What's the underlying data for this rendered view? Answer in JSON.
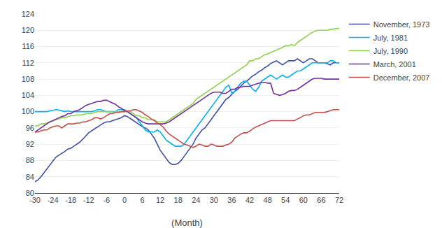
{
  "chart_data": {
    "type": "line",
    "xlabel": "(Month)",
    "xlim": [
      -30,
      72
    ],
    "ylim": [
      80,
      124
    ],
    "xticks": [
      -30,
      -24,
      -18,
      -12,
      -6,
      0,
      6,
      12,
      18,
      24,
      30,
      36,
      42,
      48,
      54,
      60,
      66,
      72
    ],
    "yticks": [
      80,
      84,
      88,
      92,
      96,
      100,
      104,
      108,
      112,
      116,
      120,
      124
    ],
    "grid": true,
    "legend": "right",
    "x": [
      -30,
      -29,
      -28,
      -27,
      -26,
      -25,
      -24,
      -23,
      -22,
      -21,
      -20,
      -19,
      -18,
      -17,
      -16,
      -15,
      -14,
      -13,
      -12,
      -11,
      -10,
      -9,
      -8,
      -7,
      -6,
      -5,
      -4,
      -3,
      -2,
      -1,
      0,
      1,
      2,
      3,
      4,
      5,
      6,
      7,
      8,
      9,
      10,
      11,
      12,
      13,
      14,
      15,
      16,
      17,
      18,
      19,
      20,
      21,
      22,
      23,
      24,
      25,
      26,
      27,
      28,
      29,
      30,
      31,
      32,
      33,
      34,
      35,
      36,
      37,
      38,
      39,
      40,
      41,
      42,
      43,
      44,
      45,
      46,
      47,
      48,
      49,
      50,
      51,
      52,
      53,
      54,
      55,
      56,
      57,
      58,
      59,
      60,
      61,
      62,
      63,
      64,
      65,
      66,
      67,
      68,
      69,
      70,
      71,
      72
    ],
    "series": [
      {
        "name": "November, 1973",
        "color": "#3f51a3",
        "values": [
          82.8,
          83.2,
          84.0,
          85.0,
          86.0,
          87.0,
          88.0,
          88.8,
          89.3,
          89.7,
          90.2,
          90.8,
          91.0,
          91.5,
          92.0,
          92.5,
          93.2,
          94.0,
          94.8,
          95.3,
          95.8,
          96.3,
          96.8,
          97.2,
          97.5,
          97.5,
          97.8,
          98.0,
          98.2,
          98.5,
          99.0,
          98.8,
          98.3,
          97.8,
          97.3,
          96.8,
          96.3,
          96.0,
          95.5,
          94.5,
          93.5,
          92.0,
          90.5,
          89.5,
          88.5,
          87.5,
          87.0,
          87.0,
          87.3,
          88.0,
          89.0,
          90.0,
          91.0,
          92.0,
          93.5,
          94.5,
          95.5,
          96.0,
          97.0,
          98.0,
          99.0,
          100.0,
          101.0,
          102.0,
          103.0,
          103.5,
          104.2,
          105.0,
          105.5,
          106.2,
          107.0,
          107.5,
          108.2,
          108.8,
          109.2,
          109.8,
          110.2,
          110.8,
          111.2,
          111.8,
          112.2,
          112.5,
          112.0,
          111.5,
          112.0,
          112.5,
          112.5,
          112.5,
          113.0,
          112.5,
          112.0,
          112.5,
          113.0,
          113.0,
          112.5,
          112.0,
          112.0,
          112.0,
          111.8,
          111.5,
          112.0,
          112.0,
          112.0
        ]
      },
      {
        "name": "July, 1981",
        "color": "#00b0f0",
        "values": [
          100.0,
          100.0,
          100.0,
          100.0,
          100.0,
          100.2,
          100.4,
          100.5,
          100.4,
          100.2,
          100.0,
          100.2,
          100.0,
          100.0,
          100.0,
          100.0,
          100.0,
          100.0,
          100.0,
          100.0,
          100.2,
          100.5,
          100.5,
          100.2,
          100.0,
          100.0,
          100.0,
          100.0,
          100.5,
          100.5,
          100.5,
          100.0,
          99.5,
          99.0,
          98.5,
          97.5,
          96.5,
          95.5,
          95.0,
          95.0,
          95.0,
          95.5,
          95.0,
          94.0,
          93.0,
          92.5,
          92.0,
          91.5,
          91.5,
          91.5,
          92.0,
          93.0,
          94.0,
          95.0,
          96.0,
          97.0,
          98.0,
          99.0,
          100.0,
          101.0,
          102.0,
          103.0,
          104.0,
          105.0,
          106.0,
          106.5,
          104.5,
          105.0,
          106.0,
          107.0,
          107.5,
          107.5,
          106.5,
          105.5,
          105.0,
          106.0,
          107.5,
          108.0,
          108.5,
          109.0,
          108.5,
          108.0,
          108.5,
          109.0,
          108.5,
          108.5,
          109.0,
          109.5,
          110.0,
          110.0,
          110.5,
          111.0,
          111.5,
          112.0,
          112.0,
          112.0,
          112.0,
          112.0,
          112.0,
          112.5,
          112.5,
          112.0,
          112.0
        ]
      },
      {
        "name": "July, 1990",
        "color": "#92d050",
        "values": [
          96.5,
          96.5,
          97.0,
          97.0,
          97.2,
          97.5,
          97.8,
          98.0,
          98.2,
          98.5,
          98.5,
          98.8,
          99.0,
          99.0,
          99.2,
          99.2,
          99.2,
          99.5,
          99.5,
          99.5,
          99.8,
          100.0,
          100.0,
          100.0,
          100.0,
          100.0,
          100.0,
          100.0,
          100.0,
          100.0,
          100.0,
          100.0,
          100.0,
          99.5,
          99.0,
          99.0,
          98.5,
          98.5,
          98.0,
          98.0,
          98.0,
          97.5,
          97.5,
          97.5,
          97.5,
          98.0,
          98.5,
          99.0,
          99.5,
          100.0,
          100.5,
          101.0,
          101.5,
          102.0,
          103.0,
          103.5,
          104.0,
          104.5,
          105.0,
          105.5,
          106.0,
          106.5,
          107.0,
          107.5,
          108.0,
          108.5,
          109.0,
          109.5,
          110.0,
          110.5,
          111.0,
          111.5,
          112.5,
          112.5,
          113.0,
          113.0,
          113.5,
          114.0,
          114.2,
          114.5,
          114.8,
          115.2,
          115.5,
          115.8,
          116.2,
          116.2,
          116.5,
          116.2,
          117.0,
          117.5,
          118.0,
          118.5,
          119.0,
          119.5,
          119.8,
          120.0,
          120.0,
          120.0,
          120.0,
          120.2,
          120.3,
          120.4,
          120.5
        ]
      },
      {
        "name": "March, 2001",
        "color": "#7030a0",
        "values": [
          95.0,
          95.5,
          96.0,
          96.5,
          97.0,
          97.5,
          97.8,
          98.2,
          98.5,
          98.8,
          99.0,
          99.5,
          99.5,
          100.0,
          100.2,
          100.5,
          101.0,
          101.5,
          101.8,
          102.0,
          102.2,
          102.5,
          102.5,
          102.8,
          102.8,
          102.5,
          102.2,
          101.8,
          101.2,
          100.8,
          100.2,
          100.0,
          99.5,
          99.0,
          98.5,
          98.0,
          97.5,
          97.2,
          97.0,
          97.0,
          97.0,
          97.0,
          97.0,
          97.0,
          97.2,
          97.5,
          98.0,
          98.5,
          99.0,
          99.5,
          100.0,
          100.5,
          101.0,
          101.5,
          102.0,
          102.5,
          103.0,
          103.5,
          104.0,
          104.5,
          104.8,
          104.8,
          104.8,
          104.5,
          104.5,
          105.0,
          105.5,
          105.5,
          106.0,
          106.0,
          106.2,
          106.2,
          106.2,
          106.5,
          106.8,
          107.0,
          107.2,
          107.2,
          107.0,
          107.0,
          104.5,
          104.2,
          104.0,
          104.2,
          104.5,
          105.0,
          105.2,
          105.2,
          105.5,
          106.0,
          106.5,
          107.0,
          107.5,
          108.0,
          108.2,
          108.2,
          108.2,
          108.0,
          108.0,
          108.0,
          108.0,
          108.0,
          108.0
        ]
      },
      {
        "name": "December, 2007",
        "color": "#c0504d",
        "values": [
          95.0,
          95.0,
          95.3,
          95.5,
          95.5,
          96.0,
          96.3,
          96.5,
          96.5,
          96.0,
          96.5,
          97.0,
          97.0,
          97.0,
          97.2,
          97.2,
          97.5,
          97.5,
          97.8,
          98.0,
          98.5,
          98.5,
          98.2,
          98.5,
          99.0,
          99.5,
          99.5,
          99.8,
          99.8,
          100.0,
          100.0,
          100.2,
          100.2,
          100.5,
          100.5,
          100.2,
          99.8,
          99.2,
          98.8,
          98.2,
          97.8,
          97.2,
          96.8,
          96.2,
          95.2,
          94.5,
          94.0,
          93.5,
          93.0,
          92.5,
          92.0,
          91.8,
          91.5,
          91.2,
          91.5,
          92.0,
          91.8,
          91.5,
          91.5,
          92.0,
          91.8,
          91.5,
          91.5,
          91.5,
          91.8,
          92.0,
          92.5,
          93.5,
          94.0,
          94.5,
          94.8,
          94.8,
          95.2,
          95.8,
          96.2,
          96.5,
          96.8,
          97.2,
          97.5,
          97.8,
          97.8,
          97.8,
          97.8,
          97.8,
          97.8,
          97.8,
          97.8,
          97.8,
          98.2,
          98.5,
          99.0,
          99.2,
          99.2,
          99.5,
          99.8,
          99.8,
          99.8,
          99.8,
          100.0,
          100.2,
          100.5,
          100.5,
          100.5
        ]
      }
    ]
  }
}
